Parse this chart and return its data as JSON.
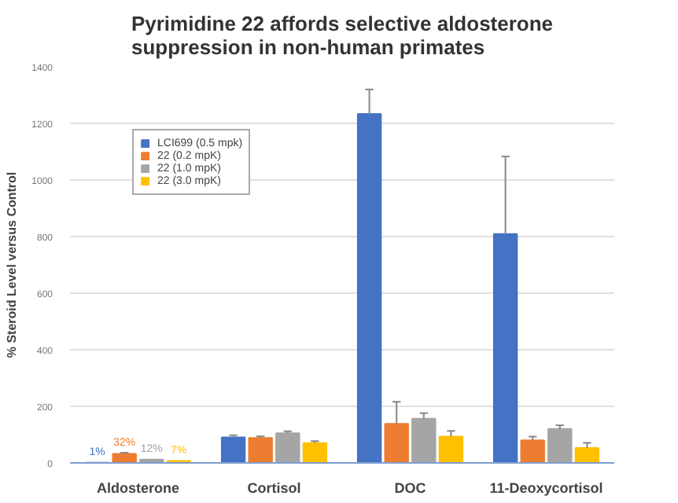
{
  "chart_data": {
    "type": "bar",
    "title": "Pyrimidine 22 affords selective aldosterone\nsuppression in non-human primates",
    "ylabel": "% Steroid Level versus Control",
    "categories": [
      "Aldosterone",
      "Cortisol",
      "DOC",
      "11-Deoxycortisol"
    ],
    "series": [
      {
        "name": "LCI699 (0.5 mpk)",
        "color": "#4472c4",
        "values": [
          1,
          90,
          1233,
          809
        ],
        "errors": [
          null,
          [
            90,
            98
          ],
          [
            1233,
            1320
          ],
          [
            809,
            1083
          ]
        ],
        "value_labels": [
          "1%",
          null,
          null,
          null
        ]
      },
      {
        "name": "22 (0.2 mpK)",
        "color": "#ed7d31",
        "values": [
          32,
          88,
          138,
          80
        ],
        "errors": [
          [
            32,
            36
          ],
          [
            88,
            94
          ],
          [
            138,
            216
          ],
          [
            80,
            93
          ]
        ],
        "value_labels": [
          "32%",
          null,
          null,
          null
        ]
      },
      {
        "name": "22 (1.0 mpK)",
        "color": "#a5a5a5",
        "values": [
          12,
          105,
          156,
          120
        ],
        "errors": [
          null,
          [
            105,
            112
          ],
          [
            156,
            176
          ],
          [
            120,
            133
          ]
        ],
        "value_labels": [
          "12%",
          null,
          null,
          null
        ]
      },
      {
        "name": "22 (3.0 mpK)",
        "color": "#ffc000",
        "values": [
          7,
          70,
          93,
          53
        ],
        "errors": [
          null,
          [
            70,
            77
          ],
          [
            93,
            113
          ],
          [
            53,
            71
          ]
        ],
        "value_labels": [
          "7%",
          null,
          null,
          null
        ]
      }
    ],
    "ylim": [
      0,
      1400
    ],
    "yticks": [
      0,
      200,
      400,
      600,
      800,
      1000,
      1200,
      1400
    ],
    "grid": "y",
    "legend": "top left"
  }
}
